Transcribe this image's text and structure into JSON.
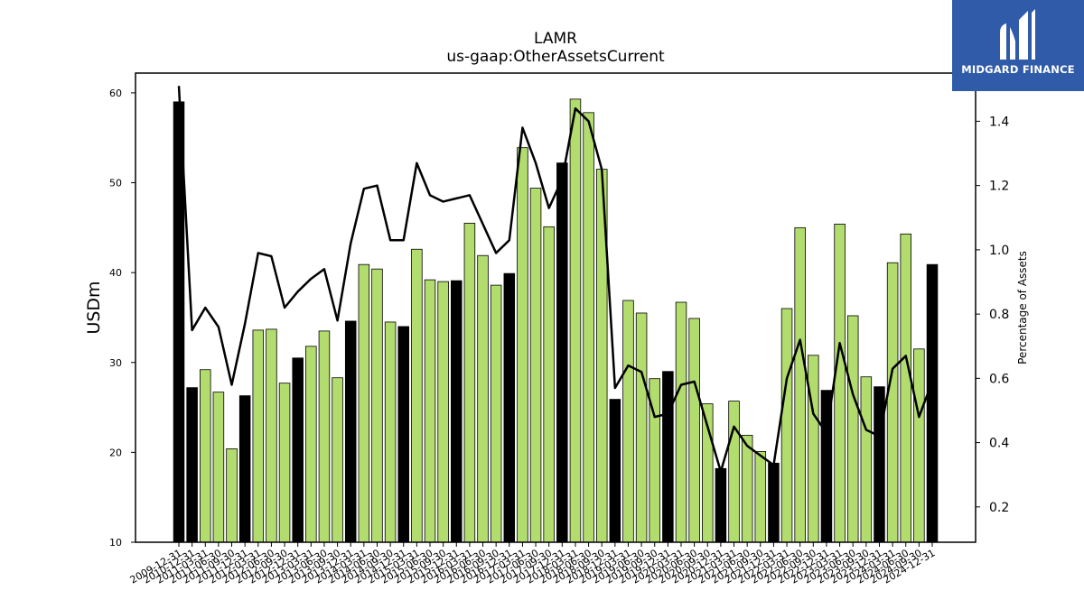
{
  "chart_data": {
    "type": "bar",
    "title": "LAMR",
    "subtitle": "us-gaap:OtherAssetsCurrent",
    "ylabel": "USDm",
    "y2label": "Percentage of Assets",
    "ylim": [
      10,
      62.2
    ],
    "y2lim": [
      0.09,
      1.55
    ],
    "yticks": [
      10,
      20,
      30,
      40,
      50,
      60
    ],
    "y2ticks": [
      "0.2",
      "0.4",
      "0.6",
      "0.8",
      "1.0",
      "1.2",
      "1.4"
    ],
    "colors": {
      "annual": "#000000",
      "quarter": "#b2dc6e",
      "line": "#000000"
    },
    "categories": [
      "2009-12-31",
      "2010-12-31",
      "2011-03-31",
      "2011-06-30",
      "2011-09-30",
      "2011-12-31",
      "2012-03-31",
      "2012-06-30",
      "2012-09-30",
      "2012-12-31",
      "2013-03-31",
      "2013-06-30",
      "2013-09-30",
      "2013-12-31",
      "2014-03-31",
      "2014-06-30",
      "2014-09-30",
      "2014-12-31",
      "2015-03-31",
      "2015-06-30",
      "2015-09-30",
      "2015-12-31",
      "2016-03-31",
      "2016-06-30",
      "2016-09-30",
      "2016-12-31",
      "2017-03-31",
      "2017-06-30",
      "2017-09-30",
      "2017-12-31",
      "2018-03-31",
      "2018-06-30",
      "2018-09-30",
      "2018-12-31",
      "2019-03-31",
      "2019-06-30",
      "2019-09-30",
      "2019-12-31",
      "2020-03-31",
      "2020-06-30",
      "2020-09-30",
      "2020-12-31",
      "2021-03-31",
      "2021-06-30",
      "2021-09-30",
      "2021-12-31",
      "2022-03-31",
      "2022-06-30",
      "2022-09-30",
      "2022-12-31",
      "2023-03-31",
      "2023-06-30",
      "2023-09-30",
      "2023-12-31",
      "2024-03-31",
      "2024-06-30",
      "2024-09-30",
      "2024-12-31"
    ],
    "values": [
      59.0,
      27.2,
      29.2,
      26.7,
      20.4,
      26.3,
      33.6,
      33.7,
      27.7,
      30.5,
      31.8,
      33.5,
      28.3,
      34.6,
      40.9,
      40.4,
      34.5,
      34.0,
      42.6,
      39.2,
      39.0,
      39.1,
      45.5,
      41.9,
      38.6,
      39.9,
      53.9,
      49.4,
      45.1,
      52.2,
      59.3,
      57.8,
      51.5,
      25.9,
      36.9,
      35.5,
      28.2,
      29.0,
      36.7,
      34.9,
      25.4,
      18.2,
      25.7,
      21.9,
      20.1,
      18.8,
      36.0,
      45.0,
      30.8,
      26.9,
      45.4,
      35.2,
      28.4,
      27.3,
      41.1,
      44.3,
      31.5,
      40.9
    ],
    "annual": [
      true,
      true,
      false,
      false,
      false,
      true,
      false,
      false,
      false,
      true,
      false,
      false,
      false,
      true,
      false,
      false,
      false,
      true,
      false,
      false,
      false,
      true,
      false,
      false,
      false,
      true,
      false,
      false,
      false,
      true,
      false,
      false,
      false,
      true,
      false,
      false,
      false,
      true,
      false,
      false,
      false,
      true,
      false,
      false,
      false,
      true,
      false,
      false,
      false,
      true,
      false,
      false,
      false,
      true,
      false,
      false,
      false,
      true
    ],
    "line_values": [
      1.51,
      0.75,
      0.82,
      0.76,
      0.58,
      0.77,
      0.99,
      0.98,
      0.82,
      0.87,
      0.91,
      0.94,
      0.78,
      1.02,
      1.19,
      1.2,
      1.03,
      1.03,
      1.27,
      1.17,
      1.15,
      1.16,
      1.17,
      1.08,
      0.99,
      1.03,
      1.38,
      1.27,
      1.13,
      1.22,
      1.44,
      1.4,
      1.25,
      0.57,
      0.64,
      0.62,
      0.48,
      0.49,
      0.58,
      0.59,
      0.45,
      0.31,
      0.45,
      0.39,
      0.36,
      0.33,
      0.6,
      0.72,
      0.49,
      0.43,
      0.71,
      0.55,
      0.44,
      0.42,
      0.63,
      0.67,
      0.48,
      0.59
    ]
  },
  "logo": {
    "text": "MIDGARD FINANCE"
  }
}
